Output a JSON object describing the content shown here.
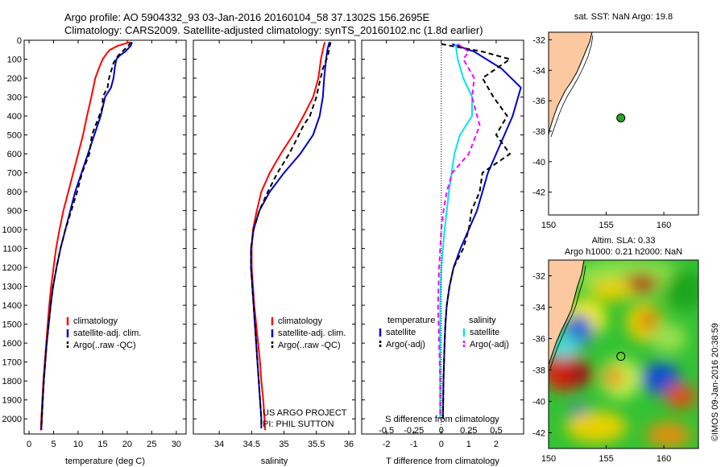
{
  "title": {
    "line1": "Argo profile: AO 5904332_93 03-Jan-2016 20160104_58 37.1302S 156.2695E",
    "line2": "Climatology: CARS2009. Satellite-adjusted climatology: synTS_20160102.nc (1.8d earlier)"
  },
  "colors": {
    "climatology": "#ff0000",
    "satellite": "#0000cc",
    "argo": "#000000",
    "sat_salinity": "#00e5ee",
    "argo_salinity": "#ff00ff",
    "land": "#fbc8a0"
  },
  "chart_data": [
    {
      "type": "line",
      "panel": "temperature",
      "xlabel": "temperature (deg C)",
      "xlim": [
        -1,
        32
      ],
      "xticks": [
        0,
        5,
        10,
        15,
        20,
        25,
        30
      ],
      "ylim": [
        0,
        2080
      ],
      "yticks": [
        0,
        100,
        200,
        300,
        400,
        500,
        600,
        700,
        800,
        900,
        1000,
        1100,
        1200,
        1300,
        1400,
        1500,
        1600,
        1700,
        1800,
        1900,
        2000
      ],
      "legend": [
        "climatology",
        "satellite-adj. clim.",
        "Argo(..raw -QC)"
      ],
      "series": [
        {
          "name": "climatology",
          "values": [
            [
              20.5,
              10
            ],
            [
              18,
              30
            ],
            [
              16.5,
              50
            ],
            [
              15.8,
              70
            ],
            [
              15,
              100
            ],
            [
              14.2,
              150
            ],
            [
              13.5,
              200
            ],
            [
              12.7,
              300
            ],
            [
              11.8,
              400
            ],
            [
              11,
              500
            ],
            [
              10,
              600
            ],
            [
              9,
              700
            ],
            [
              8,
              800
            ],
            [
              7,
              900
            ],
            [
              6.2,
              1000
            ],
            [
              5.5,
              1100
            ],
            [
              5,
              1200
            ],
            [
              4.5,
              1300
            ],
            [
              4.1,
              1400
            ],
            [
              3.8,
              1500
            ],
            [
              3.5,
              1600
            ],
            [
              3.2,
              1700
            ],
            [
              2.9,
              1800
            ],
            [
              2.7,
              1900
            ],
            [
              2.5,
              2000
            ],
            [
              2.4,
              2060
            ]
          ]
        },
        {
          "name": "satellite-adj. clim.",
          "values": [
            [
              21,
              10
            ],
            [
              20.7,
              30
            ],
            [
              19.6,
              60
            ],
            [
              18.5,
              80
            ],
            [
              17.8,
              100
            ],
            [
              17.5,
              140
            ],
            [
              17.2,
              200
            ],
            [
              16.7,
              250
            ],
            [
              15.5,
              300
            ],
            [
              14.6,
              400
            ],
            [
              13.3,
              500
            ],
            [
              12,
              600
            ],
            [
              10.7,
              700
            ],
            [
              9.4,
              800
            ],
            [
              8.4,
              900
            ],
            [
              7.4,
              1000
            ],
            [
              6.4,
              1100
            ],
            [
              5.6,
              1200
            ],
            [
              4.9,
              1300
            ],
            [
              4.4,
              1400
            ],
            [
              4,
              1500
            ],
            [
              3.6,
              1600
            ],
            [
              3.3,
              1700
            ],
            [
              3,
              1800
            ],
            [
              2.8,
              1900
            ],
            [
              2.6,
              2000
            ],
            [
              2.5,
              2060
            ]
          ]
        },
        {
          "name": "Argo(..raw -QC)",
          "values": [
            [
              20.8,
              10
            ],
            [
              20.2,
              30
            ],
            [
              19,
              60
            ],
            [
              18.2,
              80
            ],
            [
              17.2,
              120
            ],
            [
              16.3,
              200
            ],
            [
              16,
              250
            ],
            [
              15,
              300
            ],
            [
              15,
              350
            ],
            [
              14.3,
              400
            ],
            [
              12.8,
              500
            ],
            [
              12.3,
              600
            ],
            [
              10.8,
              700
            ],
            [
              9.8,
              800
            ],
            [
              8.6,
              900
            ],
            [
              7.4,
              1000
            ],
            [
              6.4,
              1100
            ],
            [
              5.6,
              1200
            ],
            [
              4.9,
              1300
            ],
            [
              4.4,
              1400
            ],
            [
              4,
              1500
            ],
            [
              3.6,
              1600
            ],
            [
              3.3,
              1700
            ],
            [
              3,
              1800
            ],
            [
              2.8,
              1900
            ],
            [
              2.6,
              2000
            ],
            [
              2.5,
              2050
            ]
          ]
        }
      ]
    },
    {
      "type": "line",
      "panel": "salinity",
      "xlabel": "salinity",
      "xlim": [
        33.6,
        36.1
      ],
      "xticks": [
        34,
        34.5,
        35,
        35.5,
        36
      ],
      "xtick_labels": [
        "34",
        "34.5",
        "35",
        "35.5",
        "36"
      ],
      "ylim": [
        0,
        2080
      ],
      "legend": [
        "climatology",
        "satellite-adj. clim.",
        "Argo(..raw -QC)"
      ],
      "annotations": [
        "US ARGO PROJECT",
        "PI: PHIL SUTTON"
      ],
      "series": [
        {
          "name": "climatology",
          "values": [
            [
              35.63,
              10
            ],
            [
              35.6,
              50
            ],
            [
              35.57,
              100
            ],
            [
              35.53,
              200
            ],
            [
              35.45,
              300
            ],
            [
              35.3,
              400
            ],
            [
              35.14,
              500
            ],
            [
              34.95,
              600
            ],
            [
              34.78,
              700
            ],
            [
              34.65,
              800
            ],
            [
              34.58,
              900
            ],
            [
              34.52,
              1000
            ],
            [
              34.5,
              1100
            ],
            [
              34.5,
              1200
            ],
            [
              34.52,
              1300
            ],
            [
              34.54,
              1400
            ],
            [
              34.57,
              1500
            ],
            [
              34.6,
              1600
            ],
            [
              34.63,
              1700
            ],
            [
              34.65,
              1800
            ],
            [
              34.68,
              1900
            ],
            [
              34.7,
              2000
            ],
            [
              34.71,
              2060
            ]
          ]
        },
        {
          "name": "satellite-adj. clim.",
          "values": [
            [
              35.7,
              10
            ],
            [
              35.67,
              50
            ],
            [
              35.65,
              100
            ],
            [
              35.62,
              200
            ],
            [
              35.6,
              300
            ],
            [
              35.55,
              400
            ],
            [
              35.45,
              500
            ],
            [
              35.25,
              600
            ],
            [
              35,
              700
            ],
            [
              34.78,
              800
            ],
            [
              34.62,
              900
            ],
            [
              34.53,
              1000
            ],
            [
              34.49,
              1100
            ],
            [
              34.49,
              1200
            ],
            [
              34.51,
              1300
            ],
            [
              34.53,
              1400
            ],
            [
              34.55,
              1500
            ],
            [
              34.57,
              1600
            ],
            [
              34.59,
              1700
            ],
            [
              34.61,
              1800
            ],
            [
              34.63,
              1900
            ],
            [
              34.65,
              2000
            ],
            [
              34.65,
              2050
            ]
          ]
        },
        {
          "name": "Argo(..raw -QC)",
          "values": [
            [
              35.72,
              10
            ],
            [
              35.7,
              40
            ],
            [
              35.68,
              80
            ],
            [
              35.6,
              150
            ],
            [
              35.53,
              250
            ],
            [
              35.5,
              300
            ],
            [
              35.4,
              400
            ],
            [
              35.3,
              450
            ],
            [
              35.2,
              520
            ],
            [
              35.08,
              600
            ],
            [
              34.9,
              700
            ],
            [
              34.75,
              800
            ],
            [
              34.62,
              900
            ],
            [
              34.53,
              1000
            ],
            [
              34.49,
              1100
            ],
            [
              34.49,
              1200
            ],
            [
              34.51,
              1300
            ],
            [
              34.53,
              1400
            ],
            [
              34.55,
              1500
            ],
            [
              34.57,
              1600
            ],
            [
              34.59,
              1700
            ],
            [
              34.61,
              1800
            ],
            [
              34.63,
              1900
            ],
            [
              34.65,
              2000
            ],
            [
              34.65,
              2050
            ]
          ]
        }
      ]
    },
    {
      "type": "line",
      "panel": "differences",
      "xlabel": "T difference from climatology",
      "xlabel_top": "S difference from climatology",
      "xlim": [
        -2.9,
        3
      ],
      "xticks": [
        -2,
        -1,
        0,
        1,
        2
      ],
      "xticks_S": [
        -0.5,
        -0.25,
        0,
        0.25,
        0.5
      ],
      "xticks_S_labels": [
        "-0.5",
        "-0.25",
        "0",
        "0.25",
        "0.5"
      ],
      "ylim": [
        0,
        2080
      ],
      "legend": {
        "temperature": [
          "satellite",
          "Argo(-adj)"
        ],
        "salinity": [
          "satellite",
          "Argo(-adj)"
        ]
      },
      "series": [
        {
          "name": "temperature satellite",
          "values": [
            [
              0.4,
              20
            ],
            [
              1.2,
              60
            ],
            [
              2.2,
              150
            ],
            [
              2.9,
              250
            ],
            [
              2.6,
              400
            ],
            [
              2,
              600
            ],
            [
              1.7,
              700
            ],
            [
              1.5,
              800
            ],
            [
              1.3,
              900
            ],
            [
              1,
              1000
            ],
            [
              0.7,
              1100
            ],
            [
              0.45,
              1200
            ],
            [
              0.3,
              1300
            ],
            [
              0.2,
              1400
            ],
            [
              0.15,
              1500
            ],
            [
              0.12,
              1600
            ],
            [
              0.1,
              1700
            ],
            [
              0.08,
              1800
            ],
            [
              0.07,
              1900
            ],
            [
              0.06,
              2000
            ]
          ]
        },
        {
          "name": "temperature Argo(-adj)",
          "values": [
            [
              0,
              20
            ],
            [
              1.5,
              60
            ],
            [
              2.5,
              100
            ],
            [
              1.5,
              200
            ],
            [
              1.9,
              300
            ],
            [
              2.4,
              400
            ],
            [
              2,
              500
            ],
            [
              2.5,
              600
            ],
            [
              1.5,
              700
            ],
            [
              1.4,
              800
            ],
            [
              1.1,
              900
            ],
            [
              1,
              1000
            ],
            [
              0.8,
              1100
            ],
            [
              0.45,
              1200
            ],
            [
              0.3,
              1300
            ],
            [
              0.2,
              1400
            ],
            [
              0.15,
              1500
            ],
            [
              0.12,
              1600
            ],
            [
              0.1,
              1700
            ],
            [
              0.08,
              1800
            ],
            [
              0.07,
              1900
            ],
            [
              0.06,
              2000
            ]
          ]
        },
        {
          "name": "salinity satellite",
          "values": [
            [
              0.13,
              20
            ],
            [
              0.15,
              100
            ],
            [
              0.2,
              200
            ],
            [
              0.28,
              300
            ],
            [
              0.28,
              400
            ],
            [
              0.17,
              500
            ],
            [
              0.12,
              600
            ],
            [
              0.07,
              800
            ],
            [
              0.03,
              1000
            ],
            [
              0,
              1200
            ],
            [
              -0.01,
              1400
            ],
            [
              -0.01,
              1600
            ],
            [
              -0.01,
              1800
            ],
            [
              -0.01,
              2000
            ]
          ]
        },
        {
          "name": "salinity Argo(-adj)",
          "values": [
            [
              0.15,
              20
            ],
            [
              0.25,
              60
            ],
            [
              0.2,
              100
            ],
            [
              0.3,
              200
            ],
            [
              0.28,
              300
            ],
            [
              0.35,
              450
            ],
            [
              0.25,
              600
            ],
            [
              0.1,
              700
            ],
            [
              0.05,
              800
            ],
            [
              0.02,
              900
            ],
            [
              0,
              1000
            ],
            [
              -0.02,
              1200
            ],
            [
              -0.03,
              1400
            ],
            [
              -0.02,
              1600
            ],
            [
              -0.01,
              1800
            ],
            [
              -0.01,
              2000
            ]
          ]
        }
      ]
    },
    {
      "type": "scatter",
      "panel": "sst_map",
      "title": "sat. SST: NaN Argo: 19.8",
      "xlim": [
        150,
        163
      ],
      "ylim": [
        -43.5,
        -31.5
      ],
      "xticks": [
        150,
        155,
        160
      ],
      "yticks": [
        -32,
        -34,
        -36,
        -38,
        -40,
        -42
      ],
      "points": [
        {
          "lon": 156.27,
          "lat": -37.13
        }
      ]
    },
    {
      "type": "heatmap",
      "panel": "sla_map",
      "title_line1": "Altim. SLA: 0.33",
      "title_line2": "Argo h1000: 0.21 h2000: NaN",
      "xlim": [
        150,
        163
      ],
      "ylim": [
        -43,
        -31
      ],
      "xticks": [
        150,
        155,
        160
      ],
      "yticks": [
        -32,
        -34,
        -36,
        -38,
        -40,
        -42
      ],
      "points": [
        {
          "lon": 156.27,
          "lat": -37.13
        }
      ]
    }
  ],
  "footer": "©IMOS 09-Jan-2016 20:38:59"
}
